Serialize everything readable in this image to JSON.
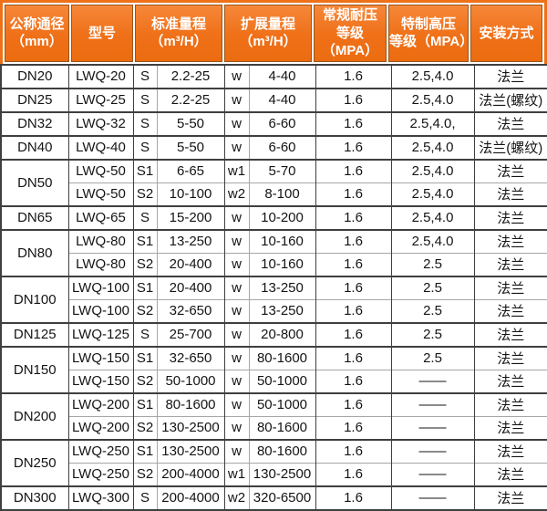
{
  "colors": {
    "header_bg": "#ef7018",
    "header_bg_light": "#f6873a",
    "header_frame": "#ee7118",
    "header_cell_outline": "#9a561a",
    "header_text": "#ffffff",
    "grid_dark": "#3f3f3f",
    "grid_light": "#a6a6a6",
    "body_text": "#141414",
    "body_bg": "#ffffff"
  },
  "table": {
    "header": {
      "col_diameter": {
        "line1": "公称通径",
        "line2": "（mm）"
      },
      "col_model": {
        "line1": "型号",
        "line2": ""
      },
      "col_std_range": {
        "line1": "标准量程",
        "line2": "（m³/H）"
      },
      "col_ext_range": {
        "line1": "扩展量程",
        "line2": "（m³/H）"
      },
      "col_std_pressure": {
        "line1": "常规耐压",
        "line2": "等级（MPA）"
      },
      "col_high_pressure": {
        "line1": "特制高压",
        "line2": "等级（MPA）"
      },
      "col_install": {
        "line1": "安装方式",
        "line2": ""
      }
    },
    "rows": [
      {
        "dn": "DN20",
        "dn_rowspan": 1,
        "model": "LWQ-20",
        "s": "S",
        "s_range": "2.2-25",
        "w": "w",
        "w_range": "4-40",
        "std_mpa": "1.6",
        "high_mpa": "2.5,4.0",
        "install": "法兰",
        "group_start": true
      },
      {
        "dn": "DN25",
        "dn_rowspan": 1,
        "model": "LWQ-25",
        "s": "S",
        "s_range": "2.2-25",
        "w": "w",
        "w_range": "4-40",
        "std_mpa": "1.6",
        "high_mpa": "2.5,4.0",
        "install": "法兰(螺纹)",
        "group_start": true
      },
      {
        "dn": "DN32",
        "dn_rowspan": 1,
        "model": "LWQ-32",
        "s": "S",
        "s_range": "5-50",
        "w": "w",
        "w_range": "6-60",
        "std_mpa": "1.6",
        "high_mpa": "2.5,4.0,",
        "install": "法兰",
        "group_start": true
      },
      {
        "dn": "DN40",
        "dn_rowspan": 1,
        "model": "LWQ-40",
        "s": "S",
        "s_range": "5-50",
        "w": "w",
        "w_range": "6-60",
        "std_mpa": "1.6",
        "high_mpa": "2.5,4.0",
        "install": "法兰(螺纹)",
        "group_start": true
      },
      {
        "dn": "DN50",
        "dn_rowspan": 2,
        "model": "LWQ-50",
        "s": "S1",
        "s_range": "6-65",
        "w": "w1",
        "w_range": "5-70",
        "std_mpa": "1.6",
        "high_mpa": "2.5,4.0",
        "install": "法兰",
        "group_start": true
      },
      {
        "dn": null,
        "dn_rowspan": 0,
        "model": "LWQ-50",
        "s": "S2",
        "s_range": "10-100",
        "w": "w2",
        "w_range": "8-100",
        "std_mpa": "1.6",
        "high_mpa": "2.5,4.0",
        "install": "法兰",
        "group_start": false
      },
      {
        "dn": "DN65",
        "dn_rowspan": 1,
        "model": "LWQ-65",
        "s": "S",
        "s_range": "15-200",
        "w": "w",
        "w_range": "10-200",
        "std_mpa": "1.6",
        "high_mpa": "2.5,4.0",
        "install": "法兰",
        "group_start": true
      },
      {
        "dn": "DN80",
        "dn_rowspan": 2,
        "model": "LWQ-80",
        "s": "S1",
        "s_range": "13-250",
        "w": "w",
        "w_range": "10-160",
        "std_mpa": "1.6",
        "high_mpa": "2.5,4.0",
        "install": "法兰",
        "group_start": true
      },
      {
        "dn": null,
        "dn_rowspan": 0,
        "model": "LWQ-80",
        "s": "S2",
        "s_range": "20-400",
        "w": "w",
        "w_range": "10-160",
        "std_mpa": "1.6",
        "high_mpa": "2.5",
        "install": "法兰",
        "group_start": false
      },
      {
        "dn": "DN100",
        "dn_rowspan": 2,
        "model": "LWQ-100",
        "s": "S1",
        "s_range": "20-400",
        "w": "w",
        "w_range": "13-250",
        "std_mpa": "1.6",
        "high_mpa": "2.5",
        "install": "法兰",
        "group_start": true
      },
      {
        "dn": null,
        "dn_rowspan": 0,
        "model": "LWQ-100",
        "s": "S2",
        "s_range": "32-650",
        "w": "w",
        "w_range": "13-250",
        "std_mpa": "1.6",
        "high_mpa": "2.5",
        "install": "法兰",
        "group_start": false
      },
      {
        "dn": "DN125",
        "dn_rowspan": 1,
        "model": "LWQ-125",
        "s": "S",
        "s_range": "25-700",
        "w": "w",
        "w_range": "20-800",
        "std_mpa": "1.6",
        "high_mpa": "2.5",
        "install": "法兰",
        "group_start": true
      },
      {
        "dn": "DN150",
        "dn_rowspan": 2,
        "model": "LWQ-150",
        "s": "S1",
        "s_range": "32-650",
        "w": "w",
        "w_range": "80-1600",
        "std_mpa": "1.6",
        "high_mpa": "2.5",
        "install": "法兰",
        "group_start": true
      },
      {
        "dn": null,
        "dn_rowspan": 0,
        "model": "LWQ-150",
        "s": "S2",
        "s_range": "50-1000",
        "w": "w",
        "w_range": "50-1000",
        "std_mpa": "1.6",
        "high_mpa": "——",
        "install": "法兰",
        "group_start": false
      },
      {
        "dn": "DN200",
        "dn_rowspan": 2,
        "model": "LWQ-200",
        "s": "S1",
        "s_range": "80-1600",
        "w": "w",
        "w_range": "50-1000",
        "std_mpa": "1.6",
        "high_mpa": "——",
        "install": "法兰",
        "group_start": true
      },
      {
        "dn": null,
        "dn_rowspan": 0,
        "model": "LWQ-200",
        "s": "S2",
        "s_range": "130-2500",
        "w": "w",
        "w_range": "80-1600",
        "std_mpa": "1.6",
        "high_mpa": "——",
        "install": "法兰",
        "group_start": false
      },
      {
        "dn": "DN250",
        "dn_rowspan": 2,
        "model": "LWQ-250",
        "s": "S1",
        "s_range": "130-2500",
        "w": "w",
        "w_range": "80-1600",
        "std_mpa": "1.6",
        "high_mpa": "——",
        "install": "法兰",
        "group_start": true
      },
      {
        "dn": null,
        "dn_rowspan": 0,
        "model": "LWQ-250",
        "s": "S2",
        "s_range": "200-4000",
        "w": "w1",
        "w_range": "130-2500",
        "std_mpa": "1.6",
        "high_mpa": "——",
        "install": "法兰",
        "group_start": false
      },
      {
        "dn": "DN300",
        "dn_rowspan": 1,
        "model": "LWQ-300",
        "s": "S",
        "s_range": "200-4000",
        "w": "w2",
        "w_range": "320-6500",
        "std_mpa": "1.6",
        "high_mpa": "——",
        "install": "法兰",
        "group_start": true
      }
    ]
  }
}
